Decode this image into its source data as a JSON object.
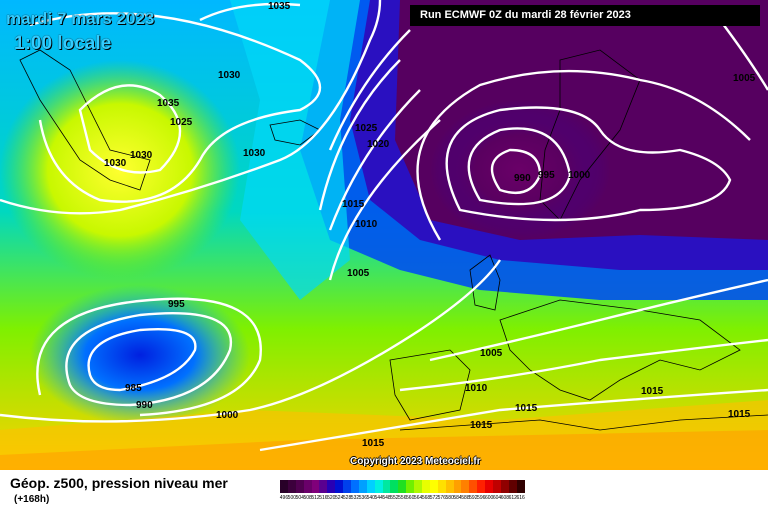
{
  "map": {
    "date_line": "mardi 7 mars 2023",
    "time_line": "1:00 locale",
    "run_info": "Run ECMWF 0Z du mardi 28 février 2023",
    "copyright": "Copyright 2023 Meteociel.fr",
    "isobar_labels": [
      "1035",
      "1030",
      "1035",
      "1025",
      "1030",
      "1030",
      "1030",
      "1025",
      "1020",
      "1015",
      "1010",
      "1005",
      "990",
      "995",
      "1000",
      "1005",
      "995",
      "985",
      "990",
      "1000",
      "1005",
      "1010",
      "1015",
      "1015",
      "1015",
      "1015",
      "1015"
    ]
  },
  "legend": {
    "title": "Géop. z500, pression niveau mer",
    "subtitle": "(+168h)",
    "scale_values": [
      "496",
      "500",
      "504",
      "508",
      "512",
      "516",
      "520",
      "524",
      "528",
      "532",
      "536",
      "540",
      "544",
      "548",
      "552",
      "556",
      "560",
      "564",
      "568",
      "572",
      "576",
      "580",
      "584",
      "588",
      "592",
      "596",
      "600",
      "604",
      "608",
      "612",
      "616"
    ],
    "scale_colors": [
      "#280028",
      "#3c003c",
      "#500050",
      "#6a006a",
      "#80007a",
      "#5a0090",
      "#2800b4",
      "#0010d2",
      "#0040ec",
      "#0070ff",
      "#00a0ff",
      "#00d0ff",
      "#00f0e0",
      "#00e8a0",
      "#00e060",
      "#20e020",
      "#70f000",
      "#b0f800",
      "#e8ff00",
      "#ffff00",
      "#ffe000",
      "#ffc000",
      "#ffa000",
      "#ff8000",
      "#ff5000",
      "#ff2000",
      "#e80000",
      "#c00000",
      "#900000",
      "#600000",
      "#300000"
    ]
  }
}
